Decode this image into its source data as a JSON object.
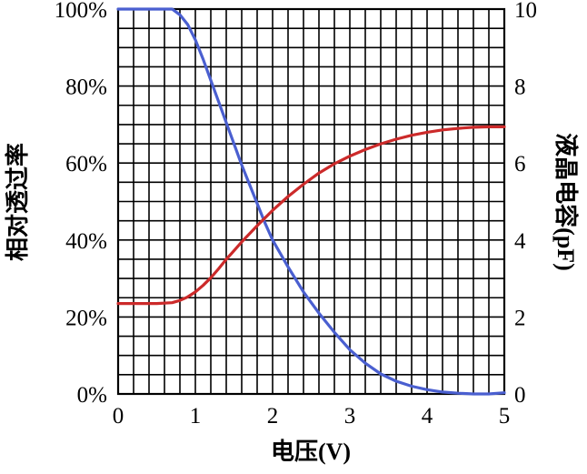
{
  "chart_data": {
    "type": "line",
    "xlabel": "电压(V)",
    "ylabel_left": "相对透过率",
    "ylabel_right": "液晶电容(pF)",
    "xlim": [
      0,
      5
    ],
    "ylim_left": [
      0,
      100
    ],
    "ylim_right": [
      0,
      10
    ],
    "x_ticks": [
      "0",
      "1",
      "2",
      "3",
      "4",
      "5"
    ],
    "y_left_ticks": [
      "0%",
      "20%",
      "40%",
      "60%",
      "80%",
      "100%"
    ],
    "y_right_ticks": [
      "0",
      "2",
      "4",
      "6",
      "8",
      "10"
    ],
    "grid": true,
    "series": [
      {
        "axis": "left",
        "color": "#4a5fd0",
        "x": [
          0,
          0.5,
          0.7,
          0.8,
          0.9,
          1.0,
          1.1,
          1.2,
          1.3,
          1.4,
          1.5,
          1.6,
          1.7,
          1.8,
          1.9,
          2.0,
          2.2,
          2.4,
          2.6,
          2.8,
          3.0,
          3.2,
          3.4,
          3.6,
          3.8,
          4.0,
          4.2,
          4.4,
          4.6,
          4.8,
          5.0
        ],
        "y": [
          100,
          100,
          100,
          98.5,
          96,
          92,
          87,
          81.5,
          76,
          70.5,
          65,
          59.5,
          54.5,
          49.5,
          44.5,
          40,
          33,
          26.5,
          21,
          16,
          11.5,
          8,
          5.2,
          3.3,
          2,
          1.1,
          0.5,
          0.2,
          0,
          0,
          0.3
        ]
      },
      {
        "axis": "right",
        "color": "#cc2a2a",
        "x": [
          0,
          0.5,
          0.7,
          0.8,
          0.9,
          1.0,
          1.1,
          1.2,
          1.3,
          1.4,
          1.5,
          1.6,
          1.8,
          2.0,
          2.2,
          2.4,
          2.6,
          2.8,
          3.0,
          3.2,
          3.4,
          3.6,
          3.8,
          4.0,
          4.2,
          4.4,
          4.6,
          4.8,
          5.0
        ],
        "y": [
          2.35,
          2.35,
          2.37,
          2.43,
          2.52,
          2.65,
          2.82,
          3.02,
          3.25,
          3.5,
          3.72,
          3.95,
          4.37,
          4.77,
          5.13,
          5.45,
          5.74,
          5.98,
          6.18,
          6.35,
          6.5,
          6.62,
          6.72,
          6.8,
          6.86,
          6.9,
          6.93,
          6.94,
          6.94
        ]
      }
    ]
  }
}
